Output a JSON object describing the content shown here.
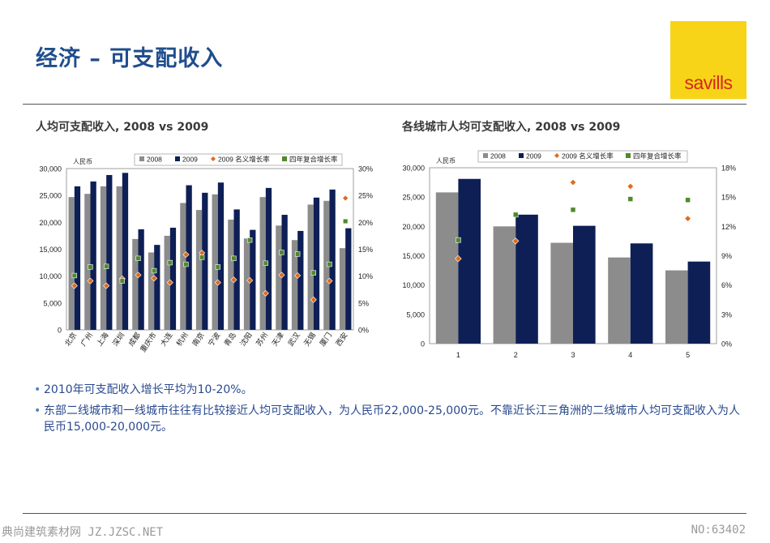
{
  "header": {
    "title": "经济 – 可支配收入",
    "logo_text": "savills"
  },
  "colors": {
    "c2008": "#8c8c8c",
    "c2009": "#0e1f55",
    "nominal": "#e06a1b",
    "cagr": "#4f8a2b",
    "title": "#1f4e8c",
    "logo_bg": "#f7d417",
    "logo_fg": "#d7261e"
  },
  "chart_data": [
    {
      "type": "bar",
      "title": "人均可支配收入, 2008 vs 2009",
      "ylabel": "人民币",
      "ylim": [
        0,
        30000
      ],
      "y_ticks": [
        "0",
        "5,000",
        "10,000",
        "15,000",
        "20,000",
        "25,000",
        "30,000"
      ],
      "y2lim": [
        0,
        30
      ],
      "y2_ticks": [
        "0%",
        "5%",
        "10%",
        "15%",
        "20%",
        "25%",
        "30%"
      ],
      "categories": [
        "北京",
        "广州",
        "上海",
        "深圳",
        "成都",
        "重庆市",
        "大连",
        "杭州",
        "南京",
        "宁波",
        "青岛",
        "沈阳",
        "苏州",
        "天津",
        "武汉",
        "无锡",
        "厦门",
        "西安"
      ],
      "series": [
        {
          "name": "2008",
          "kind": "bar",
          "values": [
            24700,
            25300,
            26700,
            26700,
            16900,
            14400,
            17500,
            23600,
            22300,
            25200,
            20500,
            17000,
            24700,
            19400,
            16700,
            23300,
            24000,
            15200
          ]
        },
        {
          "name": "2009",
          "kind": "bar",
          "values": [
            26700,
            27600,
            28800,
            29200,
            18700,
            15800,
            19000,
            26900,
            25500,
            27400,
            22400,
            18600,
            26400,
            21400,
            18400,
            24600,
            26100,
            18900
          ]
        },
        {
          "name": "2009 名义增长率",
          "kind": "marker",
          "axis": "right",
          "values": [
            8.2,
            9.1,
            8.2,
            9.5,
            10.2,
            9.6,
            8.8,
            14.0,
            14.3,
            8.8,
            9.3,
            9.2,
            6.8,
            10.2,
            10.1,
            5.6,
            9.1,
            24.5
          ]
        },
        {
          "name": "四年复合增长率",
          "kind": "marker",
          "axis": "right",
          "values": [
            10.1,
            11.7,
            11.8,
            9.1,
            13.3,
            11.0,
            12.5,
            12.2,
            13.5,
            11.7,
            13.3,
            16.7,
            12.4,
            14.4,
            14.1,
            10.6,
            12.2,
            20.2
          ]
        }
      ],
      "legend": "top"
    },
    {
      "type": "bar",
      "title": "各线城市人均可支配收入, 2008 vs 2009",
      "ylabel": "人民币",
      "ylim": [
        0,
        30000
      ],
      "y_ticks": [
        "0",
        "5,000",
        "10,000",
        "15,000",
        "20,000",
        "25,000",
        "30,000"
      ],
      "y2lim": [
        0,
        18
      ],
      "y2_ticks": [
        "0%",
        "3%",
        "6%",
        "9%",
        "12%",
        "15%",
        "18%"
      ],
      "categories": [
        "1",
        "2",
        "3",
        "4",
        "5"
      ],
      "series": [
        {
          "name": "2008",
          "kind": "bar",
          "values": [
            25800,
            20000,
            17200,
            14700,
            12500
          ]
        },
        {
          "name": "2009",
          "kind": "bar",
          "values": [
            28100,
            22000,
            20100,
            17100,
            14000
          ]
        },
        {
          "name": "2009 名义增长率",
          "kind": "marker",
          "axis": "right",
          "values": [
            8.7,
            10.5,
            16.5,
            16.1,
            12.8
          ]
        },
        {
          "name": "四年复合增长率",
          "kind": "marker",
          "axis": "right",
          "values": [
            10.6,
            13.2,
            13.7,
            14.8,
            14.7
          ]
        }
      ],
      "legend": "top"
    }
  ],
  "bullets": [
    "2010年可支配收入增长平均为10-20%。",
    "东部二线城市和一线城市往往有比较接近人均可支配收入，为人民币22,000-25,000元。不靠近长江三角洲的二线城市人均可支配收入为人民币15,000-20,000元。"
  ],
  "footer": {
    "left": "典尚建筑素材网 JZ.JZSC.NET",
    "right": "NO:63402"
  }
}
